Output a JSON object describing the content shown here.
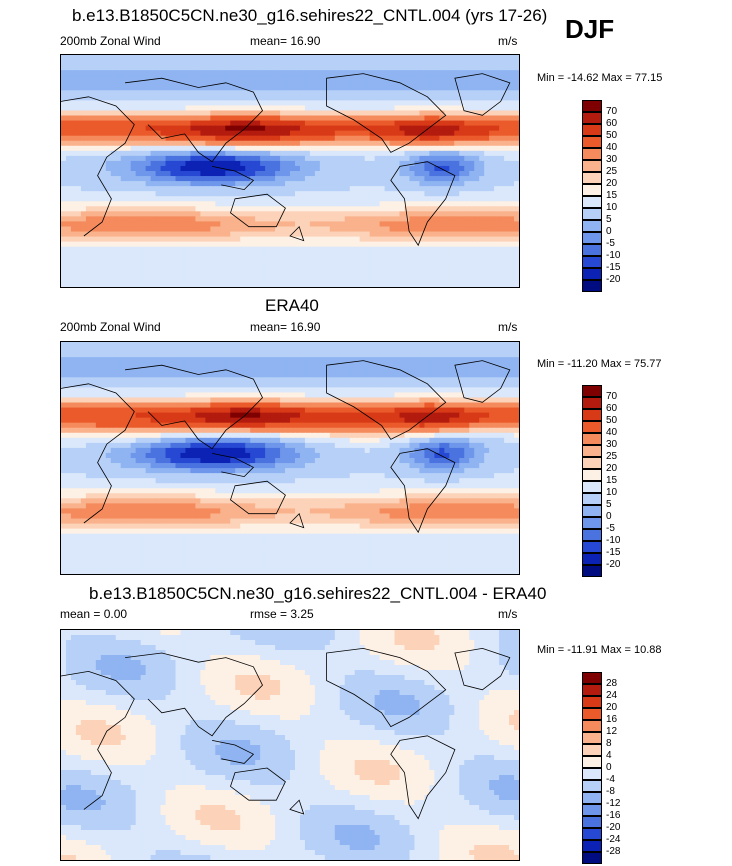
{
  "season": "DJF",
  "panels": [
    {
      "title": "b.e13.B1850C5CN.ne30_g16.sehires22_CNTL.004 (yrs 17-26)",
      "left_label": "200mb Zonal Wind",
      "mid_label": "mean=  16.90",
      "right_label": "m/s",
      "minmax": "Min = -14.62 Max =  77.15",
      "field": "model",
      "colorbar": {
        "levels": [
          "70",
          "60",
          "50",
          "40",
          "30",
          "25",
          "20",
          "15",
          "10",
          "5",
          "0",
          "-5",
          "-10",
          "-15",
          "-20"
        ],
        "colors": [
          "#7f0000",
          "#b31b0e",
          "#d83a18",
          "#ea5a2a",
          "#f58a5c",
          "#f9b28c",
          "#fcd2b8",
          "#fdf0e4",
          "#dbe8fb",
          "#b6d0f7",
          "#8fb4f1",
          "#6e96ea",
          "#4a73e0",
          "#2748d2",
          "#0c22b4",
          "#000c80"
        ]
      }
    },
    {
      "title": "ERA40",
      "left_label": "200mb Zonal Wind",
      "mid_label": "mean=  16.90",
      "right_label": "m/s",
      "minmax": "Min = -11.20 Max =  75.77",
      "field": "obs",
      "colorbar": {
        "levels": [
          "70",
          "60",
          "50",
          "40",
          "30",
          "25",
          "20",
          "15",
          "10",
          "5",
          "0",
          "-5",
          "-10",
          "-15",
          "-20"
        ],
        "colors": [
          "#7f0000",
          "#b31b0e",
          "#d83a18",
          "#ea5a2a",
          "#f58a5c",
          "#f9b28c",
          "#fcd2b8",
          "#fdf0e4",
          "#dbe8fb",
          "#b6d0f7",
          "#8fb4f1",
          "#6e96ea",
          "#4a73e0",
          "#2748d2",
          "#0c22b4",
          "#000c80"
        ]
      }
    },
    {
      "title": "b.e13.B1850C5CN.ne30_g16.sehires22_CNTL.004 - ERA40",
      "left_label": "mean =   0.00",
      "mid_label": "rmse =    3.25",
      "right_label": "m/s",
      "minmax": "Min = -11.91 Max =  10.88",
      "field": "diff",
      "colorbar": {
        "levels": [
          "28",
          "24",
          "20",
          "16",
          "12",
          "8",
          "4",
          "0",
          "-4",
          "-8",
          "-12",
          "-16",
          "-20",
          "-24",
          "-28"
        ],
        "colors": [
          "#7f0000",
          "#b31b0e",
          "#d83a18",
          "#ea5a2a",
          "#f58a5c",
          "#f9b28c",
          "#fcd2b8",
          "#fdf0e4",
          "#dbe8fb",
          "#b6d0f7",
          "#8fb4f1",
          "#6e96ea",
          "#4a73e0",
          "#2748d2",
          "#0c22b4",
          "#000c80"
        ]
      }
    }
  ]
}
